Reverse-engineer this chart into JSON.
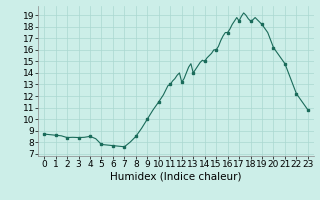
{
  "title": "",
  "xlabel": "Humidex (Indice chaleur)",
  "background_color": "#cceee8",
  "line_color": "#1a6b5a",
  "marker_color": "#1a6b5a",
  "xlim": [
    -0.5,
    23.5
  ],
  "ylim": [
    6.8,
    19.8
  ],
  "yticks": [
    7,
    8,
    9,
    10,
    11,
    12,
    13,
    14,
    15,
    16,
    17,
    18,
    19
  ],
  "xticks": [
    0,
    1,
    2,
    3,
    4,
    5,
    6,
    7,
    8,
    9,
    10,
    11,
    12,
    13,
    14,
    15,
    16,
    17,
    18,
    19,
    20,
    21,
    22,
    23
  ],
  "x": [
    0,
    0.5,
    1,
    1.5,
    2,
    2.5,
    3,
    3.5,
    4,
    4.5,
    5,
    5.5,
    6,
    6.5,
    7,
    7.5,
    8,
    8.5,
    9,
    9.5,
    10,
    10.2,
    10.4,
    10.6,
    10.8,
    11,
    11.2,
    11.4,
    11.6,
    11.8,
    12,
    12.2,
    12.4,
    12.6,
    12.8,
    13,
    13.2,
    13.4,
    13.6,
    13.8,
    14,
    14.2,
    14.4,
    14.6,
    14.8,
    15,
    15.2,
    15.4,
    15.6,
    15.8,
    16,
    16.2,
    16.4,
    16.6,
    16.8,
    17,
    17.2,
    17.4,
    17.6,
    17.8,
    18,
    18.2,
    18.4,
    18.6,
    18.8,
    19,
    19.5,
    20,
    20.5,
    21,
    21.5,
    22,
    22.5,
    23
  ],
  "y": [
    8.7,
    8.65,
    8.6,
    8.55,
    8.4,
    8.42,
    8.4,
    8.42,
    8.5,
    8.3,
    7.8,
    7.75,
    7.7,
    7.65,
    7.6,
    8.0,
    8.5,
    9.2,
    10.0,
    10.8,
    11.5,
    11.8,
    12.1,
    12.5,
    12.9,
    13.0,
    13.3,
    13.5,
    13.8,
    14.0,
    13.2,
    13.5,
    14.0,
    14.5,
    14.8,
    14.0,
    14.3,
    14.6,
    14.9,
    15.1,
    15.0,
    15.3,
    15.5,
    15.7,
    16.0,
    16.0,
    16.3,
    16.8,
    17.2,
    17.5,
    17.5,
    17.8,
    18.2,
    18.5,
    18.8,
    18.5,
    18.9,
    19.2,
    19.0,
    18.7,
    18.5,
    18.6,
    18.8,
    18.6,
    18.4,
    18.2,
    17.5,
    16.2,
    15.5,
    14.8,
    13.5,
    12.2,
    11.5,
    10.8
  ],
  "marker_x": [
    0,
    1,
    2,
    3,
    4,
    5,
    6,
    7,
    8,
    9,
    10,
    11,
    12,
    13,
    14,
    15,
    16,
    17,
    18,
    19,
    20,
    21,
    22,
    23
  ],
  "marker_y": [
    8.7,
    8.6,
    8.4,
    8.4,
    8.5,
    7.8,
    7.7,
    7.6,
    8.5,
    10.0,
    11.5,
    13.0,
    13.2,
    14.0,
    15.0,
    16.0,
    17.5,
    18.5,
    18.5,
    18.2,
    16.2,
    14.8,
    12.2,
    10.8
  ],
  "grid_color": "#aad8d0",
  "tick_fontsize": 6.5,
  "xlabel_fontsize": 7.5
}
